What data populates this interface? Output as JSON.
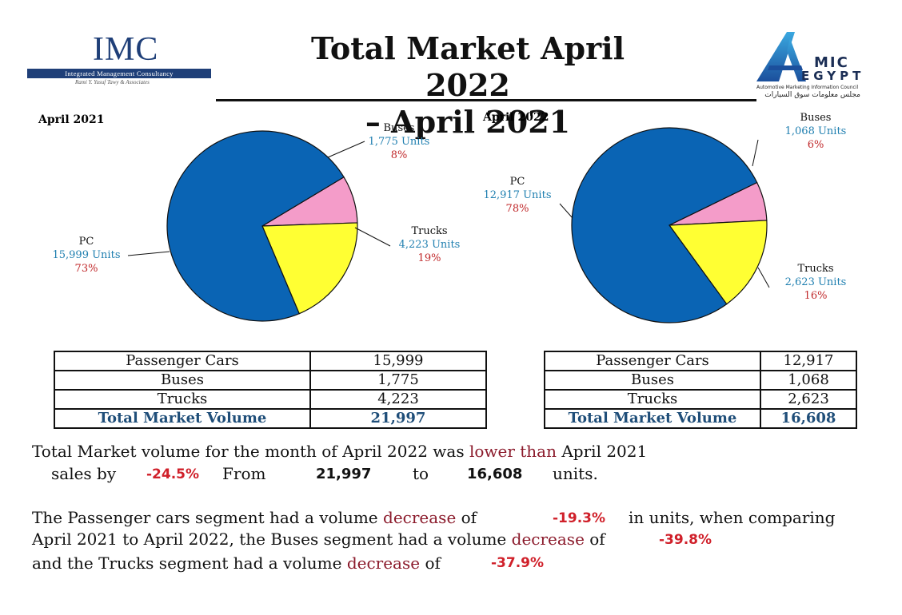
{
  "header": {
    "title_line1": "Total Market April 2022",
    "title_line2": "– April 2021",
    "imc_logo": {
      "letters": "IMC",
      "name": "Integrated Management Consultancy",
      "tagline": "Rami Y. Yusuf Tawy & Associates"
    },
    "amic_logo": {
      "mic": "MIC",
      "egypt": "EGYPT",
      "subtitle": "Automotive Marketing Information Council",
      "arabic": "مجلس معلومات سوق السيارات"
    }
  },
  "colors": {
    "pc": "#0a64b4",
    "buses": "#f49cc9",
    "trucks": "#ffff33",
    "units_text": "#1f7fb0",
    "pct_text": "#c0282a",
    "total_text": "#1f4e79",
    "negative": "#d0202a"
  },
  "chart_data": [
    {
      "type": "pie",
      "title": "April 2021",
      "categories": [
        "PC",
        "Buses",
        "Trucks"
      ],
      "values": [
        15999,
        1775,
        4223
      ],
      "unit_labels": [
        "15,999 Units",
        "1,775  Units",
        "4,223 Units"
      ],
      "percent_labels": [
        "73%",
        "8%",
        "19%"
      ]
    },
    {
      "type": "pie",
      "title": "April 2022",
      "categories": [
        "PC",
        "Buses",
        "Trucks"
      ],
      "values": [
        12917,
        1068,
        2623
      ],
      "unit_labels": [
        "12,917 Units",
        "1,068 Units",
        "2,623 Units"
      ],
      "percent_labels": [
        "78%",
        "6%",
        "16%"
      ]
    }
  ],
  "table_2021": {
    "rows": [
      {
        "label": "Passenger Cars",
        "value": "15,999"
      },
      {
        "label": "Buses",
        "value": "1,775"
      },
      {
        "label": "Trucks",
        "value": "4,223"
      }
    ],
    "total": {
      "label": "Total Market Volume",
      "value": "21,997"
    }
  },
  "table_2022": {
    "rows": [
      {
        "label": "Passenger Cars",
        "value": "12,917"
      },
      {
        "label": "Buses",
        "value": "1,068"
      },
      {
        "label": "Trucks",
        "value": "2,623"
      }
    ],
    "total": {
      "label": "Total Market Volume",
      "value": "16,608"
    }
  },
  "summary": {
    "line1_a": "Total Market volume for the month of April 2022 was",
    "line1_red": "lower than",
    "line1_b": "April 2021",
    "line2_a": "sales by",
    "change": "-24.5%",
    "from_word": "From",
    "from_value": "21,997",
    "to_word": "to",
    "to_value": "16,608",
    "units_word": "units."
  },
  "segments": {
    "l1_a": "The Passenger cars segment had a volume",
    "decrease_word": "decrease",
    "of_word": "of",
    "pc_change": "-19.3%",
    "l1_b": "in units, when comparing",
    "l2_a": "April 2021 to April 2022, the Buses segment had a volume",
    "buses_change": "-39.8%",
    "l3_a": "and the Trucks segment had a volume",
    "trucks_change": "-37.9%"
  }
}
